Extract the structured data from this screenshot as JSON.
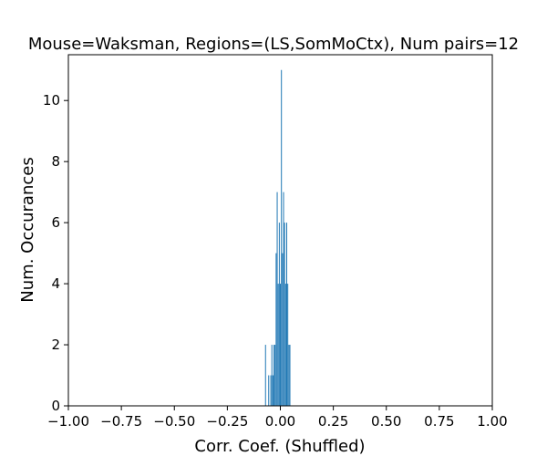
{
  "chart_data": {
    "type": "bar",
    "title": "Mouse=Waksman, Regions=(LS,SomMoCtx), Num pairs=12",
    "xlabel": "Corr. Coef. (Shuffled)",
    "ylabel": "Num. Occurances",
    "xlim": [
      -1.0,
      1.0
    ],
    "ylim": [
      0,
      11.5
    ],
    "xticks": [
      "−1.00",
      "−0.75",
      "−0.50",
      "−0.25",
      "0.00",
      "0.25",
      "0.50",
      "0.75",
      "1.00"
    ],
    "xtick_values": [
      -1.0,
      -0.75,
      -0.5,
      -0.25,
      0.0,
      0.25,
      0.5,
      0.75,
      1.0
    ],
    "yticks": [
      "0",
      "2",
      "4",
      "6",
      "8",
      "10"
    ],
    "ytick_values": [
      0,
      2,
      4,
      6,
      8,
      10
    ],
    "grid": false,
    "bar_color": "#1f77b4",
    "bins": [
      {
        "x": -0.07,
        "count": 2
      },
      {
        "x": -0.055,
        "count": 1
      },
      {
        "x": -0.045,
        "count": 1
      },
      {
        "x": -0.04,
        "count": 2
      },
      {
        "x": -0.035,
        "count": 1
      },
      {
        "x": -0.03,
        "count": 2
      },
      {
        "x": -0.025,
        "count": 2
      },
      {
        "x": -0.02,
        "count": 5
      },
      {
        "x": -0.015,
        "count": 7
      },
      {
        "x": -0.01,
        "count": 4
      },
      {
        "x": -0.005,
        "count": 6
      },
      {
        "x": 0.0,
        "count": 4
      },
      {
        "x": 0.005,
        "count": 11
      },
      {
        "x": 0.01,
        "count": 5
      },
      {
        "x": 0.015,
        "count": 7
      },
      {
        "x": 0.02,
        "count": 6
      },
      {
        "x": 0.025,
        "count": 4
      },
      {
        "x": 0.03,
        "count": 6
      },
      {
        "x": 0.035,
        "count": 4
      },
      {
        "x": 0.04,
        "count": 2
      },
      {
        "x": 0.045,
        "count": 2
      }
    ],
    "bin_width": 0.004
  }
}
